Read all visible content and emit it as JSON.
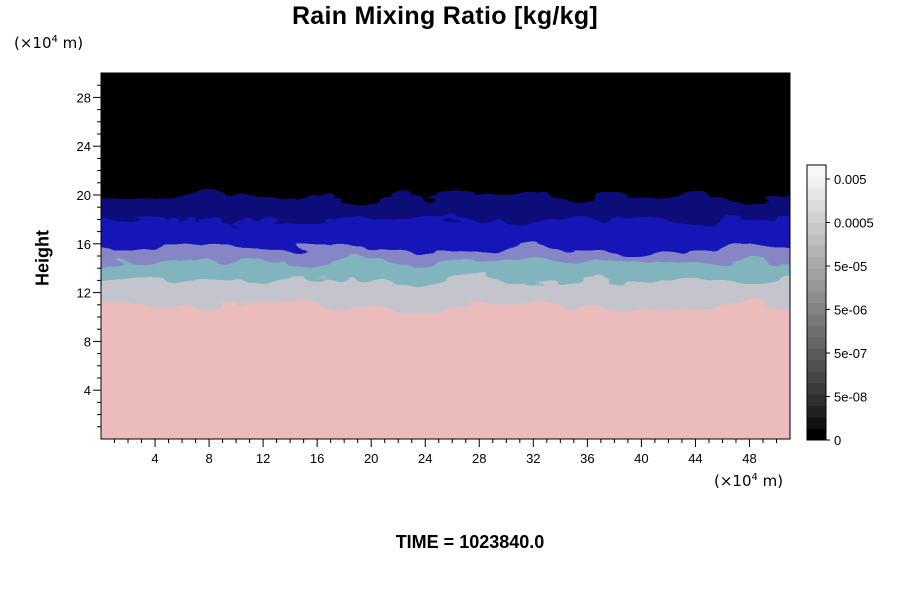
{
  "chart_data": {
    "type": "heatmap",
    "title": "Rain Mixing Ratio [kg/kg]",
    "ylabel": "Height",
    "x_unit_prefix": "(×10",
    "x_unit_exp": "4",
    "x_unit_suffix": " m)",
    "y_unit_prefix": "(×10",
    "y_unit_exp": "4",
    "y_unit_suffix": " m)",
    "xlim": [
      0,
      51
    ],
    "ylim": [
      0,
      30
    ],
    "xticks": [
      4,
      8,
      12,
      16,
      20,
      24,
      28,
      32,
      36,
      40,
      44,
      48
    ],
    "yticks": [
      4,
      8,
      12,
      16,
      20,
      24,
      28
    ],
    "layers": [
      {
        "name": "pink",
        "y_top": 11,
        "color": "#ecbcbd"
      },
      {
        "name": "light-gray",
        "y_top": 13,
        "color": "#c4c4cc"
      },
      {
        "name": "teal",
        "y_top": 14.5,
        "color": "#82b4be"
      },
      {
        "name": "lavender",
        "y_top": 15.5,
        "color": "#8686c6"
      },
      {
        "name": "blue",
        "y_top": 18,
        "color": "#1414b8"
      },
      {
        "name": "dark-blue",
        "y_top": 19.8,
        "color": "#08087a"
      },
      {
        "name": "black",
        "y_top": 30,
        "color": "#000000"
      }
    ],
    "colorbar": {
      "labels": [
        "0.005",
        "0.0005",
        "5e-05",
        "5e-06",
        "5e-07",
        "5e-08",
        "0"
      ],
      "colors": [
        "#000000",
        "#121212",
        "#212121",
        "#2e2e2e",
        "#3a3a3a",
        "#454545",
        "#505050",
        "#5a5a5a",
        "#656565",
        "#6f6f6f",
        "#797979",
        "#838383",
        "#8d8d8d",
        "#979797",
        "#a1a1a1",
        "#aaaaaa",
        "#b4b4b4",
        "#bebebe",
        "#c8c8c8",
        "#d2d2d2",
        "#dcdcdc",
        "#e6e6e6",
        "#f0f0f0",
        "#f7f7f7"
      ]
    }
  },
  "footer": {
    "time_label": "TIME = 1023840.0"
  }
}
